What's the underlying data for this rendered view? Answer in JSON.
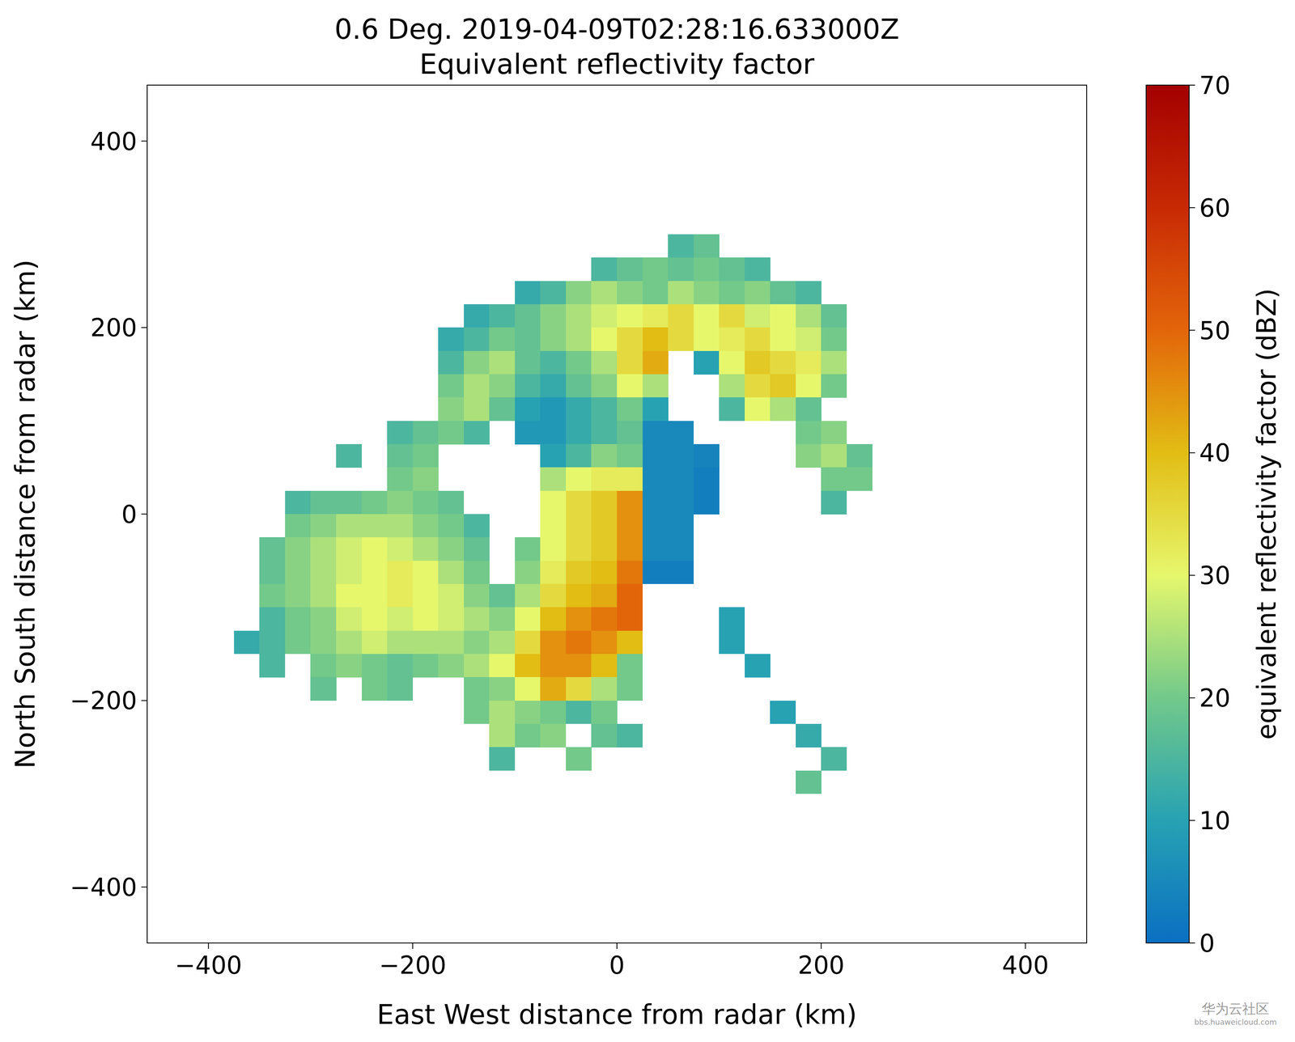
{
  "chart_data": {
    "type": "heatmap",
    "title": "0.6 Deg. 2019-04-09T02:28:16.633000Z",
    "subtitle": "Equivalent reflectivity factor",
    "x_label": "East West distance from radar (km)",
    "y_label": "North South distance from radar (km)",
    "colorbar_label": "equivalent reflectivity factor (dBZ)",
    "watermark": [
      "华为云社区",
      "bbs.huaweicloud.com"
    ],
    "xlim": [
      -460,
      460
    ],
    "ylim": [
      -460,
      460
    ],
    "xticks": [
      {
        "value": -400,
        "label": "−400"
      },
      {
        "value": -200,
        "label": "−200"
      },
      0,
      200,
      400
    ],
    "yticks": [
      {
        "value": -400,
        "label": "−400"
      },
      {
        "value": -200,
        "label": "−200"
      },
      0,
      200,
      400
    ],
    "clim": [
      0,
      70
    ],
    "cticks": [
      0,
      10,
      20,
      30,
      40,
      50,
      60,
      70
    ],
    "x": [
      -362.5,
      -337.5,
      -312.5,
      -287.5,
      -262.5,
      -237.5,
      -212.5,
      -187.5,
      -162.5,
      -137.5,
      -112.5,
      -87.5,
      -62.5,
      -37.5,
      -12.5,
      12.5,
      37.5,
      62.5,
      87.5,
      112.5,
      137.5,
      162.5,
      187.5,
      212.5,
      237.5,
      262.5
    ],
    "y": [
      287.5,
      262.5,
      237.5,
      212.5,
      187.5,
      162.5,
      137.5,
      112.5,
      87.5,
      62.5,
      37.5,
      12.5,
      -12.5,
      -37.5,
      -62.5,
      -87.5,
      -112.5,
      -137.5,
      -162.5,
      -187.5,
      -212.5,
      -237.5,
      -262.5,
      -287.5
    ],
    "values": [
      [
        null,
        null,
        null,
        null,
        null,
        null,
        null,
        null,
        null,
        null,
        null,
        null,
        null,
        null,
        null,
        null,
        null,
        15,
        18,
        null,
        null,
        null,
        null,
        null,
        null,
        null
      ],
      [
        null,
        null,
        null,
        null,
        null,
        null,
        null,
        null,
        null,
        null,
        null,
        null,
        null,
        null,
        15,
        18,
        20,
        18,
        20,
        18,
        15,
        null,
        null,
        null,
        null,
        null
      ],
      [
        null,
        null,
        null,
        null,
        null,
        null,
        null,
        null,
        null,
        null,
        null,
        12,
        15,
        22,
        25,
        22,
        20,
        25,
        22,
        20,
        22,
        18,
        15,
        null,
        null,
        null
      ],
      [
        null,
        null,
        null,
        null,
        null,
        null,
        null,
        null,
        null,
        12,
        15,
        18,
        22,
        25,
        28,
        30,
        32,
        35,
        30,
        35,
        28,
        30,
        25,
        18,
        null,
        null
      ],
      [
        null,
        null,
        null,
        null,
        null,
        null,
        null,
        null,
        12,
        15,
        20,
        18,
        22,
        25,
        30,
        35,
        40,
        35,
        30,
        32,
        35,
        30,
        28,
        20,
        null,
        null
      ],
      [
        null,
        null,
        null,
        null,
        null,
        null,
        null,
        null,
        15,
        22,
        25,
        18,
        15,
        20,
        25,
        35,
        42,
        null,
        10,
        30,
        38,
        35,
        32,
        25,
        null,
        null
      ],
      [
        null,
        null,
        null,
        null,
        null,
        null,
        null,
        null,
        20,
        25,
        22,
        15,
        12,
        18,
        22,
        30,
        25,
        null,
        null,
        25,
        35,
        38,
        30,
        20,
        null,
        null
      ],
      [
        null,
        null,
        null,
        null,
        null,
        null,
        null,
        null,
        22,
        25,
        18,
        10,
        8,
        12,
        15,
        20,
        10,
        null,
        null,
        15,
        30,
        25,
        18,
        null,
        null,
        null
      ],
      [
        null,
        null,
        null,
        null,
        null,
        null,
        15,
        18,
        20,
        15,
        null,
        8,
        8,
        12,
        15,
        18,
        5,
        5,
        null,
        null,
        null,
        null,
        20,
        22,
        null,
        null
      ],
      [
        null,
        null,
        null,
        null,
        15,
        null,
        18,
        20,
        null,
        null,
        null,
        null,
        10,
        15,
        22,
        20,
        5,
        5,
        4,
        null,
        null,
        null,
        22,
        25,
        18,
        null
      ],
      [
        null,
        null,
        null,
        null,
        null,
        null,
        20,
        22,
        null,
        null,
        null,
        null,
        25,
        30,
        32,
        32,
        5,
        5,
        3,
        null,
        null,
        null,
        null,
        20,
        20,
        null
      ],
      [
        null,
        null,
        15,
        18,
        18,
        20,
        22,
        20,
        18,
        null,
        null,
        null,
        30,
        35,
        38,
        45,
        5,
        5,
        3,
        null,
        null,
        null,
        null,
        15,
        null,
        null
      ],
      [
        null,
        null,
        20,
        22,
        25,
        25,
        25,
        22,
        20,
        15,
        null,
        null,
        30,
        35,
        38,
        45,
        5,
        5,
        null,
        null,
        null,
        null,
        null,
        null,
        null,
        null
      ],
      [
        null,
        18,
        22,
        25,
        28,
        30,
        28,
        25,
        22,
        18,
        null,
        20,
        30,
        35,
        38,
        45,
        5,
        5,
        null,
        null,
        null,
        null,
        null,
        null,
        null,
        null
      ],
      [
        null,
        18,
        22,
        25,
        28,
        30,
        32,
        30,
        25,
        20,
        null,
        22,
        32,
        38,
        40,
        48,
        3,
        3,
        null,
        null,
        null,
        null,
        null,
        null,
        null,
        null
      ],
      [
        null,
        20,
        22,
        25,
        30,
        30,
        32,
        30,
        28,
        22,
        18,
        25,
        35,
        40,
        42,
        50,
        null,
        null,
        null,
        null,
        null,
        null,
        null,
        null,
        null,
        null
      ],
      [
        null,
        15,
        20,
        22,
        28,
        30,
        28,
        30,
        28,
        25,
        22,
        30,
        40,
        45,
        48,
        50,
        null,
        null,
        null,
        10,
        null,
        null,
        null,
        null,
        null,
        null
      ],
      [
        12,
        15,
        20,
        22,
        25,
        28,
        25,
        25,
        25,
        22,
        25,
        35,
        45,
        48,
        45,
        40,
        null,
        null,
        null,
        10,
        null,
        null,
        null,
        null,
        null,
        null
      ],
      [
        null,
        15,
        null,
        20,
        22,
        20,
        18,
        20,
        22,
        25,
        30,
        40,
        45,
        45,
        40,
        20,
        null,
        null,
        null,
        null,
        10,
        null,
        null,
        null,
        null,
        null
      ],
      [
        null,
        null,
        null,
        18,
        null,
        20,
        18,
        null,
        null,
        20,
        22,
        30,
        42,
        35,
        25,
        20,
        null,
        null,
        null,
        null,
        null,
        null,
        null,
        null,
        null,
        null
      ],
      [
        null,
        null,
        null,
        null,
        null,
        null,
        null,
        null,
        null,
        20,
        25,
        22,
        20,
        15,
        20,
        null,
        null,
        null,
        null,
        null,
        null,
        10,
        null,
        null,
        null,
        null
      ],
      [
        null,
        null,
        null,
        null,
        null,
        null,
        null,
        null,
        null,
        null,
        25,
        20,
        22,
        null,
        18,
        15,
        null,
        null,
        null,
        null,
        null,
        null,
        12,
        null,
        null,
        null
      ],
      [
        null,
        null,
        null,
        null,
        null,
        null,
        null,
        null,
        null,
        null,
        15,
        null,
        null,
        20,
        null,
        null,
        null,
        null,
        null,
        null,
        null,
        null,
        null,
        15,
        null,
        null
      ],
      [
        null,
        null,
        null,
        null,
        null,
        null,
        null,
        null,
        null,
        null,
        null,
        null,
        null,
        null,
        null,
        null,
        null,
        null,
        null,
        null,
        null,
        null,
        18,
        null,
        null,
        null
      ]
    ]
  }
}
